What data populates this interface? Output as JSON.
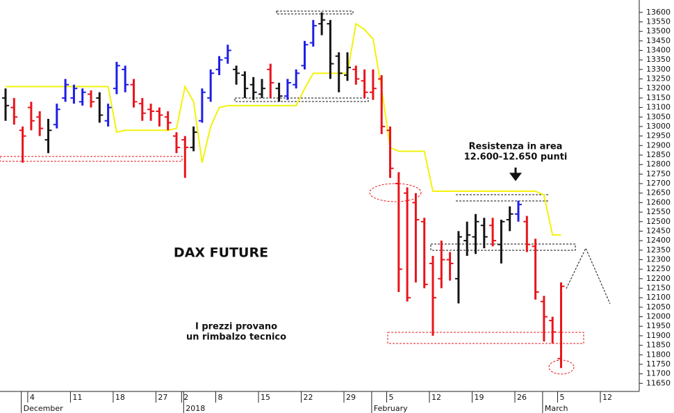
{
  "chart_data": {
    "type": "ohlc",
    "title": "DAX FUTURE",
    "notes": {
      "resistance": [
        "Resistenza in area",
        "12.600-12.650 punti"
      ],
      "bounce": [
        "I prezzi provano",
        "un rimbalzo tecnico"
      ]
    },
    "categories": [
      null,
      null,
      null,
      "4",
      null,
      null,
      null,
      null,
      "11",
      null,
      null,
      null,
      null,
      "18",
      null,
      null,
      null,
      null,
      "27",
      null,
      null,
      "2",
      null,
      null,
      null,
      "8",
      null,
      null,
      null,
      null,
      "15",
      null,
      null,
      null,
      null,
      "22",
      null,
      null,
      null,
      null,
      "29",
      null,
      null,
      null,
      null,
      "5",
      null,
      null,
      null,
      null,
      "12",
      null,
      null,
      null,
      null,
      "19",
      null,
      null,
      null,
      null,
      "26",
      null,
      null,
      null,
      null,
      "5",
      null,
      null,
      null,
      null,
      "12"
    ],
    "months": [
      null,
      null,
      "December",
      null,
      null,
      null,
      null,
      null,
      null,
      null,
      null,
      null,
      null,
      null,
      null,
      null,
      null,
      null,
      null,
      null,
      null,
      "2018",
      null,
      null,
      null,
      null,
      null,
      null,
      null,
      null,
      null,
      null,
      null,
      null,
      null,
      null,
      null,
      null,
      null,
      null,
      null,
      null,
      null,
      "February",
      null,
      null,
      null,
      null,
      null,
      null,
      null,
      null,
      null,
      null,
      null,
      null,
      null,
      null,
      null,
      null,
      null,
      null,
      null,
      "March",
      null,
      null,
      null,
      null,
      null,
      null,
      null
    ],
    "open": [
      13150,
      13100,
      12980,
      13100,
      13050,
      12930,
      13010,
      13150,
      13150,
      13130,
      13170,
      13150,
      13030,
      13200,
      13300,
      13220,
      13120,
      13090,
      13080,
      13050,
      12950,
      12930,
      12890,
      13030,
      13150,
      13300,
      13360,
      13300,
      13270,
      13220,
      13170,
      13300,
      13200,
      13160,
      13220,
      13320,
      13440,
      13540,
      13540,
      13370,
      13270,
      13300,
      13240,
      13180,
      13250,
      12980,
      12700,
      12650,
      12600,
      12500,
      12280,
      12200,
      12300,
      12200,
      12400,
      12420,
      12480,
      12480,
      12380,
      12510,
      12540,
      12500,
      12370,
      12080,
      11980,
      11780,
      null,
      null,
      null,
      null,
      null
    ],
    "high": [
      13200,
      13150,
      13000,
      13130,
      13080,
      13040,
      13120,
      13250,
      13220,
      13200,
      13190,
      13180,
      13120,
      13340,
      13320,
      13250,
      13150,
      13120,
      13100,
      13080,
      12970,
      12950,
      13000,
      13200,
      13300,
      13370,
      13430,
      13320,
      13290,
      13260,
      13250,
      13330,
      13230,
      13250,
      13300,
      13450,
      13560,
      13600,
      13560,
      13390,
      13390,
      13320,
      13300,
      13300,
      13270,
      13000,
      12760,
      12680,
      12650,
      12520,
      12320,
      12400,
      12340,
      12450,
      12500,
      12540,
      12520,
      12520,
      12510,
      12580,
      12610,
      12530,
      12410,
      12110,
      12000,
      12180,
      null,
      null,
      null,
      null,
      null
    ],
    "low": [
      13030,
      13010,
      12810,
      12980,
      12950,
      12860,
      12990,
      13130,
      13120,
      13110,
      13100,
      13020,
      13000,
      13170,
      13180,
      13100,
      13030,
      13030,
      13000,
      12980,
      12860,
      12730,
      12870,
      13020,
      13130,
      13270,
      13330,
      13220,
      13150,
      13140,
      13150,
      13150,
      13130,
      13140,
      13200,
      13300,
      13420,
      13480,
      13250,
      13180,
      13240,
      13220,
      13150,
      13140,
      12960,
      12730,
      12130,
      12080,
      12180,
      12150,
      11900,
      12150,
      12190,
      12070,
      12320,
      12330,
      12360,
      12370,
      12280,
      12450,
      12500,
      12340,
      12090,
      11870,
      11860,
      11730,
      null,
      null,
      null,
      null,
      null
    ],
    "close": [
      13110,
      13050,
      12950,
      13030,
      12990,
      12980,
      13090,
      13220,
      13200,
      13180,
      13130,
      13060,
      13100,
      13320,
      13220,
      13130,
      13070,
      13080,
      13060,
      13020,
      12890,
      12890,
      12970,
      13180,
      13280,
      13350,
      13400,
      13280,
      13200,
      13180,
      13200,
      13230,
      13160,
      13230,
      13280,
      13430,
      13530,
      13560,
      13330,
      13280,
      13310,
      13250,
      13180,
      13200,
      13000,
      12780,
      12250,
      12100,
      12510,
      12170,
      12100,
      12300,
      12280,
      12420,
      12430,
      12500,
      12420,
      12400,
      12500,
      12540,
      12590,
      12380,
      12130,
      12000,
      11920,
      12160,
      null,
      null,
      null,
      null,
      null
    ],
    "bar_colors": [
      "#141414",
      "#e8141c",
      "#e8141c",
      "#e8141c",
      "#e8141c",
      "#141414",
      "#1e1ee6",
      "#1e1ee6",
      "#1e1ee6",
      "#1e1ee6",
      "#e8141c",
      "#141414",
      "#1e1ee6",
      "#1e1ee6",
      "#1e1ee6",
      "#e8141c",
      "#e8141c",
      "#e8141c",
      "#e8141c",
      "#e8141c",
      "#e8141c",
      "#e8141c",
      "#141414",
      "#1e1ee6",
      "#1e1ee6",
      "#1e1ee6",
      "#1e1ee6",
      "#141414",
      "#141414",
      "#141414",
      "#141414",
      "#e8141c",
      "#141414",
      "#1e1ee6",
      "#1e1ee6",
      "#1e1ee6",
      "#1e1ee6",
      "#141414",
      "#141414",
      "#141414",
      "#141414",
      "#e8141c",
      "#e8141c",
      "#e8141c",
      "#e8141c",
      "#e8141c",
      "#e8141c",
      "#e8141c",
      "#e8141c",
      "#e8141c",
      "#e8141c",
      "#e8141c",
      "#e8141c",
      "#141414",
      "#141414",
      "#141414",
      "#141414",
      "#e8141c",
      "#141414",
      "#141414",
      "#1e1ee6",
      "#e8141c",
      "#e8141c",
      "#e8141c",
      "#e8141c",
      "#e8141c",
      null,
      null,
      null,
      null,
      null
    ],
    "stop_line": {
      "color": "#f2f20a",
      "values": [
        13210,
        13210,
        13210,
        13210,
        13210,
        13210,
        13210,
        13210,
        13210,
        13210,
        13210,
        13210,
        13210,
        12970,
        12980,
        12980,
        12980,
        12980,
        12980,
        12980,
        12990,
        13210,
        13130,
        12810,
        13000,
        13100,
        13110,
        13110,
        13110,
        13110,
        13110,
        13110,
        13110,
        13110,
        13110,
        13200,
        13280,
        13280,
        13280,
        13280,
        13280,
        13540,
        13510,
        13460,
        13200,
        12890,
        12870,
        12870,
        12870,
        12870,
        12660,
        12660,
        12660,
        12660,
        12660,
        12660,
        12660,
        12660,
        12660,
        12660,
        12660,
        12660,
        12660,
        12640,
        12430,
        12430,
        null,
        null,
        null,
        null,
        null
      ]
    },
    "ylim": [
      11600,
      13665
    ],
    "yticks": [
      11650,
      11700,
      11750,
      11800,
      11850,
      11900,
      11950,
      12000,
      12050,
      12100,
      12150,
      12200,
      12250,
      12300,
      12350,
      12400,
      12450,
      12500,
      12550,
      12600,
      12650,
      12700,
      12750,
      12800,
      12850,
      12900,
      12950,
      13000,
      13050,
      13100,
      13150,
      13200,
      13250,
      13300,
      13350,
      13400,
      13450,
      13500,
      13550,
      13600
    ]
  }
}
